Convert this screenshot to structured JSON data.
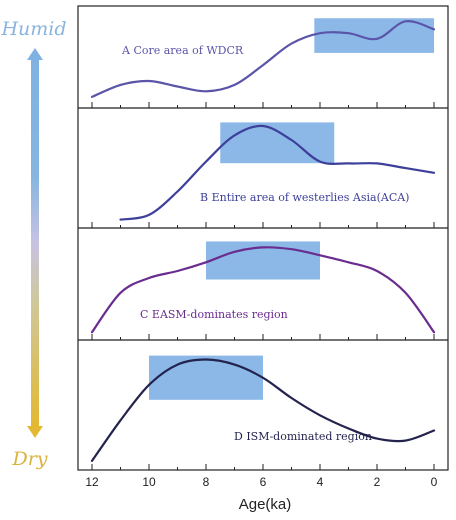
{
  "humid_label": "Humid",
  "dry_label": "Dry",
  "colors": {
    "humid_text": "#8ab4dd",
    "dry_text": "#d8b43c",
    "window_box": "#7fb0e6",
    "axis": "#222222"
  },
  "chart_data": {
    "type": "line",
    "xlabel": "Age(ka)",
    "xlim": [
      12,
      0
    ],
    "xticks": [
      12,
      10,
      8,
      6,
      4,
      2,
      0
    ],
    "panels": [
      {
        "label": "A Core area of WDCR",
        "color": "#5a55a8",
        "humid_window": [
          4.2,
          0.0
        ],
        "x": [
          12,
          11,
          10,
          9,
          8,
          7,
          6,
          5,
          4,
          3,
          2,
          1,
          0
        ],
        "y": [
          0.05,
          0.2,
          0.25,
          0.18,
          0.12,
          0.2,
          0.45,
          0.72,
          0.85,
          0.85,
          0.78,
          1.0,
          0.9
        ]
      },
      {
        "label": "B Entire area of westerlies Asia(ACA)",
        "color": "#3d3f9a",
        "humid_window": [
          7.5,
          3.5
        ],
        "x": [
          11,
          10,
          9,
          8,
          7,
          6,
          5,
          4,
          3,
          2,
          1,
          0
        ],
        "y": [
          0.0,
          0.05,
          0.3,
          0.62,
          0.9,
          1.0,
          0.85,
          0.62,
          0.6,
          0.6,
          0.55,
          0.5
        ]
      },
      {
        "label": "C EASM-dominates region",
        "color": "#6a2c8e",
        "humid_window": [
          8.0,
          4.0
        ],
        "x": [
          12,
          11,
          10,
          9,
          8,
          7,
          6,
          5,
          4,
          3,
          2,
          1,
          0
        ],
        "y": [
          0.0,
          0.45,
          0.62,
          0.7,
          0.8,
          0.92,
          0.97,
          0.95,
          0.88,
          0.8,
          0.7,
          0.45,
          0.0
        ]
      },
      {
        "label": "D ISM-dominated region",
        "color": "#23234e",
        "humid_window": [
          10.0,
          6.0
        ],
        "x": [
          12,
          11,
          10,
          9,
          8,
          7,
          6,
          5,
          4,
          3,
          2,
          1,
          0
        ],
        "y": [
          0.0,
          0.4,
          0.75,
          0.95,
          1.0,
          0.95,
          0.82,
          0.62,
          0.45,
          0.32,
          0.22,
          0.2,
          0.3
        ]
      }
    ]
  }
}
